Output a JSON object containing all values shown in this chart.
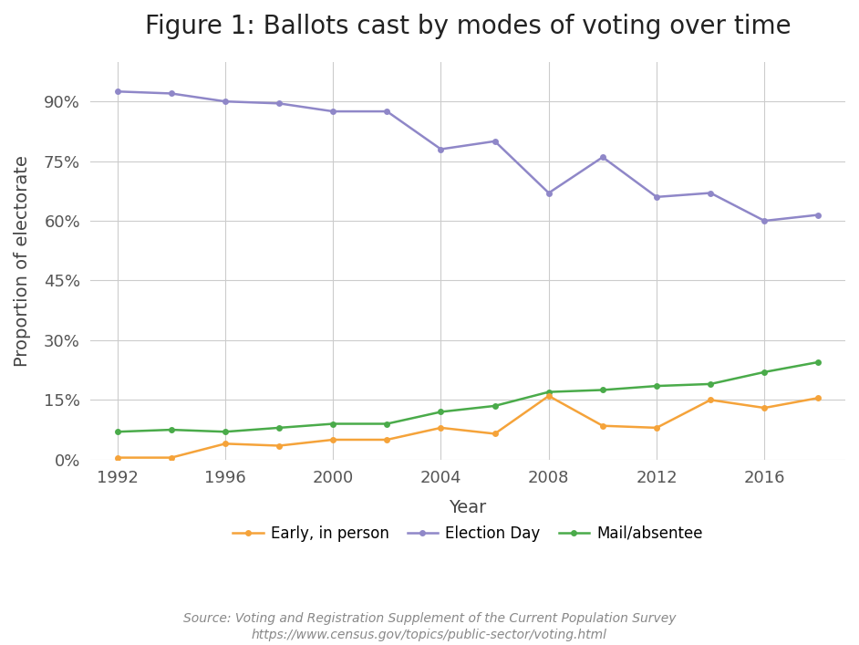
{
  "title": "Figure 1: Ballots cast by modes of voting over time",
  "xlabel": "Year",
  "ylabel": "Proportion of electorate",
  "source_line1": "Source: Voting and Registration Supplement of the Current Population Survey",
  "source_line2": "https://www.census.gov/topics/public-sector/voting.html",
  "years": [
    1992,
    1994,
    1996,
    1998,
    2000,
    2002,
    2004,
    2006,
    2008,
    2010,
    2012,
    2014,
    2016,
    2018
  ],
  "early_in_person": [
    0.005,
    0.005,
    0.04,
    0.035,
    0.05,
    0.05,
    0.08,
    0.065,
    0.16,
    0.085,
    0.08,
    0.15,
    0.13,
    0.155
  ],
  "election_day": [
    0.925,
    0.92,
    0.9,
    0.895,
    0.875,
    0.875,
    0.78,
    0.8,
    0.67,
    0.76,
    0.66,
    0.67,
    0.6,
    0.615
  ],
  "mail_absentee": [
    0.07,
    0.075,
    0.07,
    0.08,
    0.09,
    0.09,
    0.12,
    0.135,
    0.17,
    0.175,
    0.185,
    0.19,
    0.22,
    0.245
  ],
  "early_color": "#f5a33a",
  "election_day_color": "#8f87c8",
  "mail_absentee_color": "#4aab4a",
  "background_color": "#ffffff",
  "grid_color": "#cccccc",
  "ylim": [
    0,
    1.0
  ],
  "yticks": [
    0.0,
    0.15,
    0.3,
    0.45,
    0.6,
    0.75,
    0.9
  ],
  "ytick_labels": [
    "0%",
    "15%",
    "30%",
    "45%",
    "60%",
    "75%",
    "90%"
  ],
  "xticks": [
    1992,
    1996,
    2000,
    2004,
    2008,
    2012,
    2016
  ],
  "xlim": [
    1991,
    2019
  ],
  "title_fontsize": 20,
  "axis_label_fontsize": 14,
  "tick_fontsize": 13,
  "legend_fontsize": 12,
  "source_fontsize": 10,
  "linewidth": 1.8,
  "marker": "o",
  "markersize": 5
}
